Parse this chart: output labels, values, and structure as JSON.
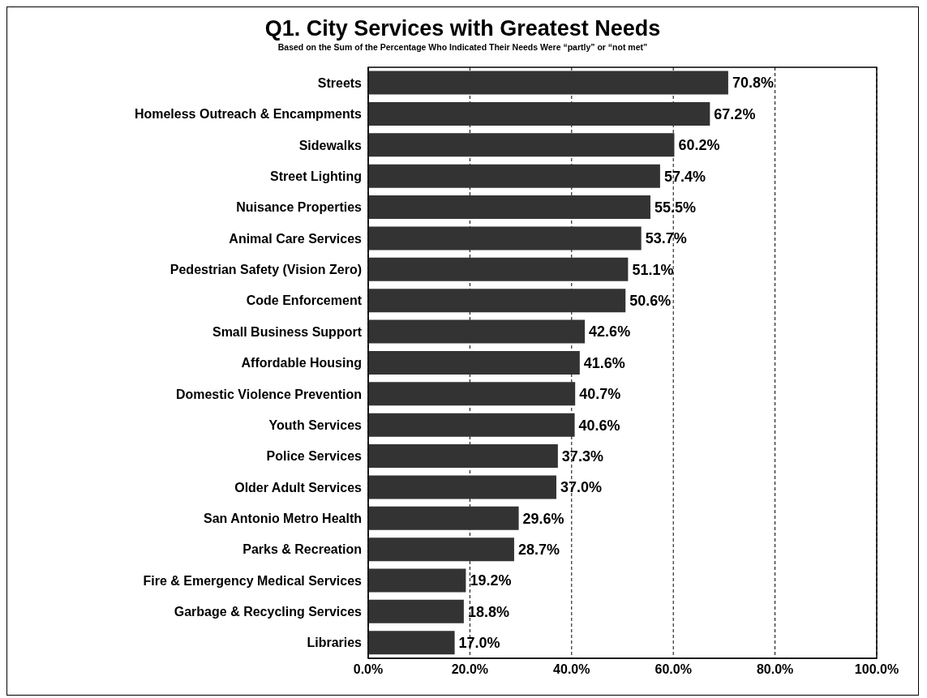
{
  "chart_data": {
    "type": "bar",
    "orientation": "horizontal",
    "title": "Q1. City Services with Greatest Needs",
    "subtitle": "Based on the Sum of the Percentage Who Indicated Their Needs Were “partly” or “not met”",
    "categories": [
      "Streets",
      "Homeless Outreach & Encampments",
      "Sidewalks",
      "Street Lighting",
      "Nuisance Properties",
      "Animal Care Services",
      "Pedestrian Safety (Vision Zero)",
      "Code Enforcement",
      "Small Business Support",
      "Affordable Housing",
      "Domestic Violence Prevention",
      "Youth Services",
      "Police Services",
      "Older Adult Services",
      "San Antonio Metro Health",
      "Parks & Recreation",
      "Fire & Emergency Medical Services",
      "Garbage & Recycling Services",
      "Libraries"
    ],
    "values": [
      70.8,
      67.2,
      60.2,
      57.4,
      55.5,
      53.7,
      51.1,
      50.6,
      42.6,
      41.6,
      40.7,
      40.6,
      37.3,
      37.0,
      29.6,
      28.7,
      19.2,
      18.8,
      17.0
    ],
    "value_labels": [
      "70.8%",
      "67.2%",
      "60.2%",
      "57.4%",
      "55.5%",
      "53.7%",
      "51.1%",
      "50.6%",
      "42.6%",
      "41.6%",
      "40.7%",
      "40.6%",
      "37.3%",
      "37.0%",
      "29.6%",
      "28.7%",
      "19.2%",
      "18.8%",
      "17.0%"
    ],
    "color": "#333333",
    "xlim": [
      0,
      100
    ],
    "xticks": [
      {
        "value": 0,
        "label": "0.0%"
      },
      {
        "value": 20,
        "label": "20.0%"
      },
      {
        "value": 40,
        "label": "40.0%"
      },
      {
        "value": 60,
        "label": "60.0%"
      },
      {
        "value": 80,
        "label": "80.0%"
      },
      {
        "value": 100,
        "label": "100.0%"
      }
    ],
    "grid": "x"
  }
}
